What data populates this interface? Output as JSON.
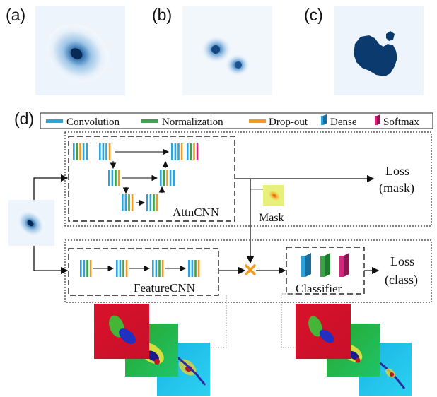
{
  "panels": {
    "a": "(a)",
    "b": "(b)",
    "c": "(c)",
    "d": "(d)"
  },
  "legend": {
    "items": [
      {
        "label": "Convolution",
        "color": "#2ba3dc",
        "icon": "bar"
      },
      {
        "label": "Normalization",
        "color": "#3aa547",
        "icon": "bar"
      },
      {
        "label": "Drop-out",
        "color": "#f29a1e",
        "icon": "bar"
      },
      {
        "label": "Dense",
        "color": "#2ba3dc",
        "icon": "dense-block"
      },
      {
        "label": "Softmax",
        "color": "#d6257e",
        "icon": "dense-block"
      }
    ]
  },
  "modules": {
    "attn": "AttnCNN",
    "feature": "FeatureCNN",
    "classifier": "Classifier",
    "mask": "Mask"
  },
  "outputs": {
    "loss_mask_line1": "Loss",
    "loss_mask_line2": "(mask)",
    "loss_class_line1": "Loss",
    "loss_class_line2": "(class)"
  },
  "colors": {
    "conv": "#2ba3dc",
    "norm": "#3aa547",
    "dropout": "#f29a1e",
    "softmax": "#d6257e",
    "mask_fill": "#0b3a6e",
    "multiply": "#f29a1e"
  }
}
